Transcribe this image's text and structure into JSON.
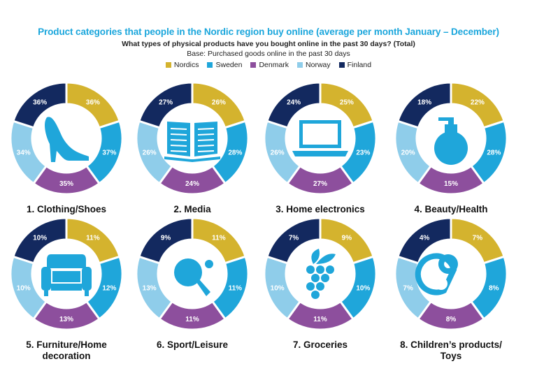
{
  "title": "Product categories that people in the Nordic region buy online (average per month January – December)",
  "subtitle": "What types of physical products have you bought online in the past 30 days? (Total)",
  "base": "Base: Purchased goods online in the past 30 days",
  "colors": {
    "Nordics": "#d4b32e",
    "Sweden": "#1fa6da",
    "Denmark": "#8d4f9d",
    "Norway": "#8fcdea",
    "Finland": "#13295f"
  },
  "legend": [
    {
      "name": "Nordics"
    },
    {
      "name": "Sweden"
    },
    {
      "name": "Denmark"
    },
    {
      "name": "Norway"
    },
    {
      "name": "Finland"
    }
  ],
  "chart_data": [
    {
      "type": "pie",
      "title": "1. Clothing/Shoes",
      "icon": "shoe-icon",
      "series": [
        {
          "name": "Nordics",
          "value": 36
        },
        {
          "name": "Sweden",
          "value": 37
        },
        {
          "name": "Denmark",
          "value": 35
        },
        {
          "name": "Norway",
          "value": 34
        },
        {
          "name": "Finland",
          "value": 36
        }
      ]
    },
    {
      "type": "pie",
      "title": "2. Media",
      "icon": "book-icon",
      "series": [
        {
          "name": "Nordics",
          "value": 26
        },
        {
          "name": "Sweden",
          "value": 28
        },
        {
          "name": "Denmark",
          "value": 24
        },
        {
          "name": "Norway",
          "value": 26
        },
        {
          "name": "Finland",
          "value": 27
        }
      ]
    },
    {
      "type": "pie",
      "title": "3. Home electronics",
      "icon": "laptop-icon",
      "series": [
        {
          "name": "Nordics",
          "value": 25
        },
        {
          "name": "Sweden",
          "value": 23
        },
        {
          "name": "Denmark",
          "value": 27
        },
        {
          "name": "Norway",
          "value": 26
        },
        {
          "name": "Finland",
          "value": 24
        }
      ]
    },
    {
      "type": "pie",
      "title": "4. Beauty/Health",
      "icon": "perfume-bottle-icon",
      "series": [
        {
          "name": "Nordics",
          "value": 22
        },
        {
          "name": "Sweden",
          "value": 28
        },
        {
          "name": "Denmark",
          "value": 15
        },
        {
          "name": "Norway",
          "value": 20
        },
        {
          "name": "Finland",
          "value": 18
        }
      ]
    },
    {
      "type": "pie",
      "title": "5. Furniture/Home\ndecoration",
      "icon": "armchair-icon",
      "series": [
        {
          "name": "Nordics",
          "value": 11
        },
        {
          "name": "Sweden",
          "value": 12
        },
        {
          "name": "Denmark",
          "value": 13
        },
        {
          "name": "Norway",
          "value": 10
        },
        {
          "name": "Finland",
          "value": 10
        }
      ]
    },
    {
      "type": "pie",
      "title": "6. Sport/Leisure",
      "icon": "ping-pong-icon",
      "series": [
        {
          "name": "Nordics",
          "value": 11
        },
        {
          "name": "Sweden",
          "value": 11
        },
        {
          "name": "Denmark",
          "value": 11
        },
        {
          "name": "Norway",
          "value": 13
        },
        {
          "name": "Finland",
          "value": 9
        }
      ]
    },
    {
      "type": "pie",
      "title": "7. Groceries",
      "icon": "grapes-icon",
      "series": [
        {
          "name": "Nordics",
          "value": 9
        },
        {
          "name": "Sweden",
          "value": 10
        },
        {
          "name": "Denmark",
          "value": 11
        },
        {
          "name": "Norway",
          "value": 10
        },
        {
          "name": "Finland",
          "value": 7
        }
      ]
    },
    {
      "type": "pie",
      "title": "8. Children’s products/\nToys",
      "icon": "pacifier-icon",
      "series": [
        {
          "name": "Nordics",
          "value": 7
        },
        {
          "name": "Sweden",
          "value": 8
        },
        {
          "name": "Denmark",
          "value": 8
        },
        {
          "name": "Norway",
          "value": 7
        },
        {
          "name": "Finland",
          "value": 4
        }
      ]
    }
  ]
}
